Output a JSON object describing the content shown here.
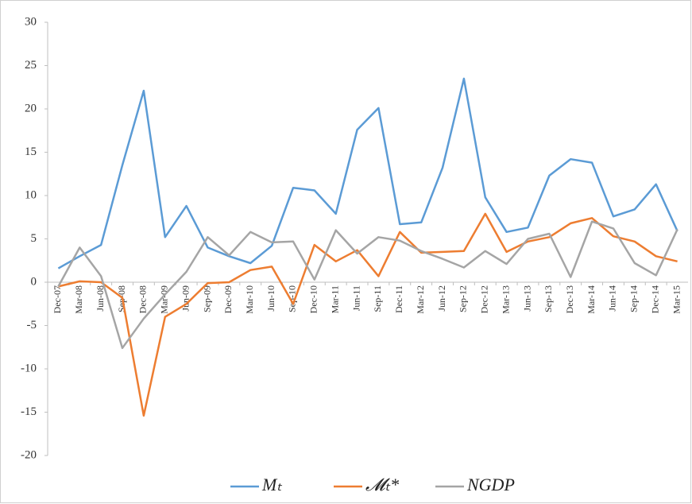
{
  "chart_data": {
    "type": "line",
    "categories": [
      "Dec-07",
      "Mar-08",
      "Jun-08",
      "Sep-08",
      "Dec-08",
      "Mar-09",
      "Jun-09",
      "Sep-09",
      "Dec-09",
      "Mar-10",
      "Jun-10",
      "Sep-10",
      "Dec-10",
      "Mar-11",
      "Jun-11",
      "Sep-11",
      "Dec-11",
      "Mar-12",
      "Jun-12",
      "Sep-12",
      "Dec-12",
      "Mar-13",
      "Jun-13",
      "Sep-13",
      "Dec-13",
      "Mar-14",
      "Jun-14",
      "Sep-14",
      "Dec-14",
      "Mar-15"
    ],
    "series": [
      {
        "name": "Mₜ",
        "color": "#5b9bd5",
        "values": [
          1.6,
          3.0,
          4.3,
          13.5,
          22.1,
          5.2,
          8.8,
          4.0,
          3.0,
          2.2,
          4.2,
          10.9,
          10.6,
          7.9,
          17.6,
          20.1,
          6.7,
          6.9,
          13.2,
          23.5,
          9.8,
          5.8,
          6.3,
          12.3,
          14.2,
          13.8,
          7.6,
          8.4,
          11.3,
          5.9
        ]
      },
      {
        "name": "𝓜ₜ*",
        "color": "#ed7d31",
        "values": [
          -0.5,
          0.1,
          0.0,
          -1.8,
          -15.4,
          -4.0,
          -2.5,
          -0.1,
          0.0,
          1.4,
          1.8,
          -2.5,
          4.3,
          2.4,
          3.7,
          0.7,
          5.8,
          3.4,
          3.5,
          3.6,
          7.9,
          3.5,
          4.7,
          5.2,
          6.8,
          7.4,
          5.3,
          4.7,
          3.0,
          2.4
        ]
      },
      {
        "name": "NGDP",
        "color": "#a5a5a5",
        "values": [
          -0.5,
          4.0,
          0.7,
          -7.6,
          -4.2,
          -1.4,
          1.2,
          5.2,
          3.1,
          5.8,
          4.6,
          4.7,
          0.3,
          6.0,
          3.3,
          5.2,
          4.8,
          3.6,
          2.7,
          1.7,
          3.6,
          2.1,
          5.0,
          5.6,
          0.6,
          7.0,
          6.2,
          2.2,
          0.8,
          6.1
        ]
      }
    ],
    "ylim": [
      -20,
      30
    ],
    "yticks": [
      -20,
      -15,
      -10,
      -5,
      0,
      5,
      10,
      15,
      20,
      25,
      30
    ],
    "grid": false,
    "legend": "bottom"
  }
}
